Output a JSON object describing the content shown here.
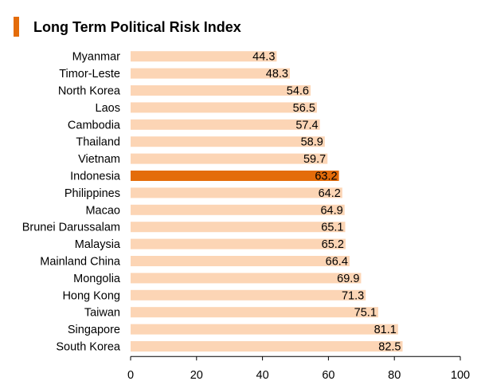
{
  "chart_data": {
    "type": "bar",
    "orientation": "horizontal",
    "title": "Long Term Political Risk Index",
    "categories": [
      "Myanmar",
      "Timor-Leste",
      "North Korea",
      "Laos",
      "Cambodia",
      "Thailand",
      "Vietnam",
      "Indonesia",
      "Philippines",
      "Macao",
      "Brunei Darussalam",
      "Malaysia",
      "Mainland China",
      "Mongolia",
      "Hong Kong",
      "Taiwan",
      "Singapore",
      "South Korea"
    ],
    "values": [
      44.3,
      48.3,
      54.6,
      56.5,
      57.4,
      58.9,
      59.7,
      63.2,
      64.2,
      64.9,
      65.1,
      65.2,
      66.4,
      69.9,
      71.3,
      75.1,
      81.1,
      82.5
    ],
    "value_labels": [
      "44.3",
      "48.3",
      "54.6",
      "56.5",
      "57.4",
      "58.9",
      "59.7",
      "63.2",
      "64.2",
      "64.9",
      "65.1",
      "65.2",
      "66.4",
      "69.9",
      "71.3",
      "75.1",
      "81.1",
      "82.5"
    ],
    "highlight": "Indonesia",
    "xlim": [
      0,
      100
    ],
    "xticks": [
      0,
      20,
      40,
      60,
      80,
      100
    ],
    "xlabel": "",
    "ylabel": "",
    "grid": false,
    "colors": {
      "bar": "#fcd5b5",
      "highlight": "#e46c0a",
      "title_accent": "#e46c0a"
    }
  }
}
